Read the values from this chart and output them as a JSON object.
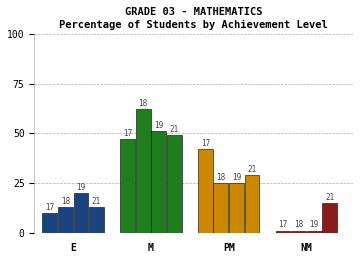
{
  "title_line1": "GRADE 03 - MATHEMATICS",
  "title_line2": "Percentage of Students by Achievement Level",
  "groups": [
    "E",
    "M",
    "PM",
    "NM"
  ],
  "bar_heights": {
    "E": [
      10,
      13,
      20,
      13
    ],
    "M": [
      47,
      62,
      51,
      49
    ],
    "PM": [
      42,
      25,
      25,
      29
    ],
    "NM": [
      1,
      1,
      1,
      15
    ]
  },
  "bar_labels": {
    "E": [
      17,
      18,
      19,
      21
    ],
    "M": [
      17,
      18,
      19,
      21
    ],
    "PM": [
      17,
      18,
      19,
      21
    ],
    "NM": [
      17,
      18,
      19,
      21
    ]
  },
  "colors": {
    "E": "#1a4480",
    "M": "#1e7e1e",
    "PM": "#cc8800",
    "NM": "#8b1a1a"
  },
  "group_positions": [
    1,
    4,
    7,
    10
  ],
  "group_labels": [
    "E",
    "M",
    "PM",
    "NM"
  ],
  "ylim": [
    0,
    100
  ],
  "yticks": [
    0,
    25,
    50,
    75,
    100
  ],
  "bg_color": "#ffffff",
  "plot_bg": "#ffffff",
  "font_family": "monospace",
  "bar_width": 0.6
}
